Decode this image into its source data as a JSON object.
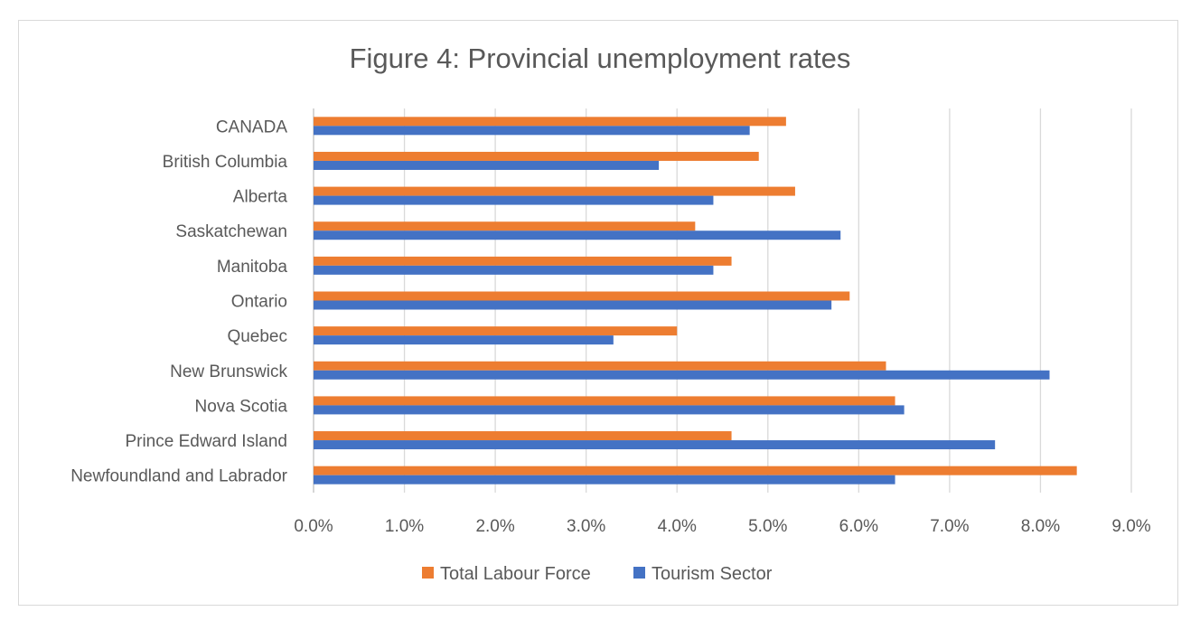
{
  "chart_data": {
    "type": "bar",
    "orientation": "horizontal",
    "title": "Figure 4: Provincial unemployment rates",
    "categories": [
      "CANADA",
      "British Columbia",
      "Alberta",
      "Saskatchewan",
      "Manitoba",
      "Ontario",
      "Quebec",
      "New Brunswick",
      "Nova Scotia",
      "Prince Edward Island",
      "Newfoundland and Labrador"
    ],
    "series": [
      {
        "name": "Total Labour Force",
        "color": "#ED7D31",
        "values": [
          5.2,
          4.9,
          5.3,
          4.2,
          4.6,
          5.9,
          4.0,
          6.3,
          6.4,
          4.6,
          8.4
        ]
      },
      {
        "name": "Tourism Sector",
        "color": "#4472C4",
        "values": [
          4.8,
          3.8,
          4.4,
          5.8,
          4.4,
          5.7,
          3.3,
          8.1,
          6.5,
          7.5,
          6.4
        ]
      }
    ],
    "x_ticks": [
      "0.0%",
      "1.0%",
      "2.0%",
      "3.0%",
      "4.0%",
      "5.0%",
      "6.0%",
      "7.0%",
      "8.0%",
      "9.0%"
    ],
    "xlim": [
      0,
      9
    ],
    "value_unit": "%",
    "grid": true,
    "legend_position": "bottom"
  }
}
